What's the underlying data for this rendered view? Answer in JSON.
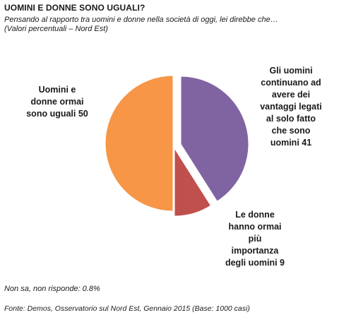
{
  "header": {
    "title": "UOMINI E DONNE SONO UGUALI?",
    "subtitle_line1": "Pensando al rapporto tra uomini e donne nella società di oggi, lei direbbe che…",
    "subtitle_line2": "(Valori percentuali – Nord Est)"
  },
  "footer": {
    "note": "Non sa, non risponde: 0.8%",
    "source": "Fonte: Demos, Osservatorio sul Nord Est, Gennaio 2015 (Base: 1000 casi)"
  },
  "chart_data": {
    "type": "pie",
    "slices": [
      {
        "label": "Gli uomini continuano ad avere dei vantaggi legati al solo fatto che sono uomini",
        "label_lines": [
          "Gli uomini",
          "continuano ad",
          "avere dei",
          "vantaggi legati",
          "al solo fatto",
          "che sono",
          "uomini 41"
        ],
        "value": 41,
        "color": "#8064a2",
        "exploded": true
      },
      {
        "label": "Le donne hanno ormai più importanza degli uomini",
        "label_lines": [
          "Le donne",
          "hanno ormai",
          "più",
          "importanza",
          "degli uomini 9"
        ],
        "value": 9,
        "color": "#c0504d",
        "exploded": true
      },
      {
        "label": "Uomini e donne ormai sono uguali",
        "label_lines": [
          "Uomini e",
          "donne ormai",
          "sono uguali 50"
        ],
        "value": 50,
        "color": "#f79646",
        "exploded": false
      }
    ]
  }
}
